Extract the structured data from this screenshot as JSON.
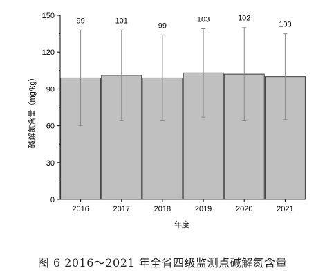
{
  "chart_data": {
    "type": "bar",
    "categories": [
      "2016",
      "2017",
      "2018",
      "2019",
      "2020",
      "2021"
    ],
    "values": [
      99,
      101,
      99,
      103,
      102,
      100
    ],
    "error_upper": [
      138,
      138,
      134,
      139,
      140,
      135
    ],
    "error_lower": [
      60,
      64,
      64,
      67,
      64,
      65
    ],
    "data_labels": [
      "99",
      "101",
      "99",
      "103",
      "102",
      "100"
    ],
    "xlabel": "年度",
    "ylabel": "碱解氮含量（mg/kg）",
    "yticks": [
      "0",
      "30",
      "60",
      "90",
      "120",
      "150"
    ],
    "ylim": [
      0,
      150
    ],
    "grid": false,
    "bar_color": "#c0c0c0",
    "bar_edge_color": "#3a3a3a",
    "error_bar_color": "#8a8a8a"
  },
  "caption": "图 6   2016～2021 年全省四级监测点碱解氮含量"
}
